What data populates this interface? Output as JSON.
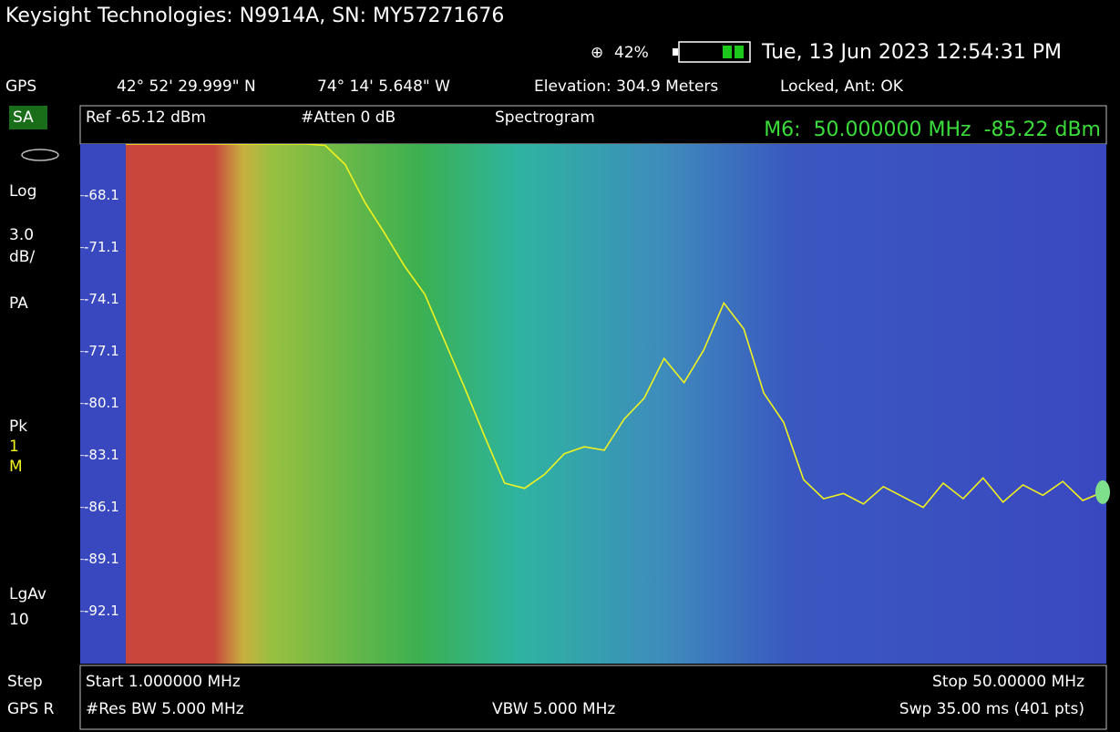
{
  "header": {
    "title": "Keysight Technologies: N9914A, SN: MY57271676",
    "gps_percent": "42%",
    "datetime": "Tue, 13 Jun 2023 12:54:31 PM",
    "gps_label": "GPS",
    "latitude": "42° 52' 29.999\" N",
    "longitude": "74° 14' 5.648\" W",
    "elevation": "Elevation: 304.9 Meters",
    "status": "Locked, Ant: OK"
  },
  "sidebar": {
    "mode": "SA",
    "scale_type": "Log",
    "scale_value": "3.0",
    "scale_unit": "dB/",
    "preamp": "PA",
    "detector": "Pk",
    "trace_number": "1",
    "trace_state": "M",
    "average": "LgAv",
    "average_count": "10",
    "step": "Step",
    "gps_r": "GPS R"
  },
  "settings": {
    "ref": "Ref -65.12 dBm",
    "atten": "#Atten 0 dB",
    "view": "Spectrogram",
    "marker": "M6:  50.000000 MHz  -85.22 dBm"
  },
  "footer": {
    "start": "Start 1.000000 MHz",
    "stop": "Stop 50.00000 MHz",
    "rbw": "#Res BW 5.000 MHz",
    "vbw": "VBW 5.000 MHz",
    "sweep": "Swp 35.00 ms (401 pts)"
  },
  "chart_data": {
    "type": "line",
    "color": "#f2f21e",
    "x": [
      1,
      2,
      3,
      4,
      5,
      6,
      7,
      8,
      9,
      10,
      11,
      12,
      13,
      14,
      15,
      16,
      17,
      18,
      19,
      20,
      21,
      22,
      23,
      24,
      25,
      26,
      27,
      28,
      29,
      30,
      31,
      32,
      33,
      34,
      35,
      36,
      37,
      38,
      39,
      40,
      41,
      42,
      43,
      44,
      45,
      46,
      47,
      48,
      49,
      50
    ],
    "values": [
      -65.12,
      -65.12,
      -65.12,
      -65.12,
      -65.12,
      -65.12,
      -65.12,
      -65.12,
      -65.12,
      -65.12,
      -65.2,
      -66.3,
      -68.5,
      -70.3,
      -72.2,
      -73.8,
      -76.5,
      -79.2,
      -82.0,
      -84.7,
      -85.0,
      -84.2,
      -83.0,
      -82.6,
      -82.8,
      -81.0,
      -79.8,
      -77.5,
      -78.9,
      -77.0,
      -74.3,
      -75.8,
      -79.5,
      -81.2,
      -84.5,
      -85.6,
      -85.3,
      -85.9,
      -84.9,
      -85.5,
      -86.1,
      -84.7,
      -85.6,
      -84.4,
      -85.8,
      -84.8,
      -85.4,
      -84.6,
      -85.7,
      -85.22
    ],
    "xlim": [
      1,
      50
    ],
    "ylim": [
      -95.12,
      -65.12
    ],
    "yticks": [
      -68.1,
      -71.1,
      -74.1,
      -77.1,
      -80.1,
      -83.1,
      -86.1,
      -89.1,
      -92.1
    ]
  }
}
